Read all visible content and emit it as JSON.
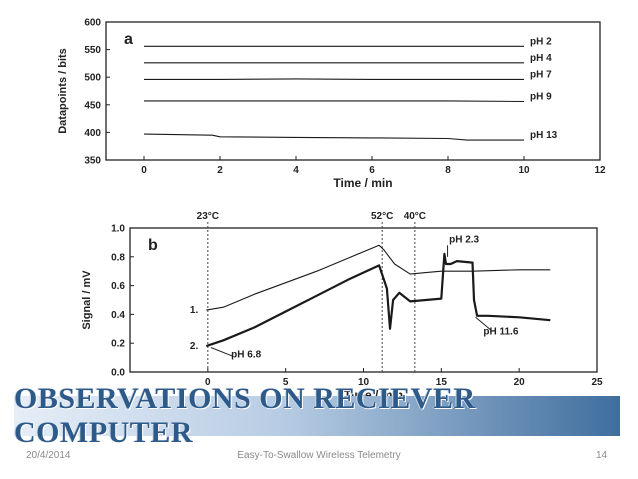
{
  "chart_data": [
    {
      "type": "line",
      "panel_label": "a",
      "xlabel": "Time / min",
      "ylabel": "Datapoints / bits",
      "xlim": [
        -1,
        12
      ],
      "ylim": [
        350,
        600
      ],
      "xticks": [
        0,
        2,
        4,
        6,
        8,
        10,
        12
      ],
      "yticks": [
        350,
        400,
        450,
        500,
        550,
        600
      ],
      "series": [
        {
          "name": "pH 2",
          "x": [
            0,
            2,
            4,
            6,
            8,
            10
          ],
          "y": [
            556,
            556,
            556,
            556,
            556,
            556
          ]
        },
        {
          "name": "pH 4",
          "x": [
            0,
            2,
            4,
            6,
            8,
            10
          ],
          "y": [
            526,
            526,
            526,
            526,
            526,
            526
          ]
        },
        {
          "name": "pH 7",
          "x": [
            0,
            2,
            4,
            6,
            8,
            10
          ],
          "y": [
            496,
            496,
            497,
            496,
            496,
            496
          ]
        },
        {
          "name": "pH 9",
          "x": [
            0,
            2,
            4,
            6,
            8,
            10
          ],
          "y": [
            457,
            457,
            457,
            457,
            457,
            456
          ]
        },
        {
          "name": "pH 13",
          "x": [
            0,
            1.8,
            2,
            4,
            6,
            8,
            8.5,
            10
          ],
          "y": [
            397,
            395,
            392,
            391,
            390,
            389,
            386,
            386
          ]
        }
      ]
    },
    {
      "type": "line",
      "panel_label": "b",
      "xlabel": "Time / min",
      "ylabel": "Signal / mV",
      "xlim": [
        -5,
        25
      ],
      "ylim": [
        0,
        1
      ],
      "xticks": [
        0,
        5,
        10,
        15,
        20,
        25
      ],
      "yticks": [
        0.0,
        0.2,
        0.4,
        0.6,
        0.8,
        1.0
      ],
      "ytick_labels": [
        "0.0",
        "0.2",
        "0.4",
        "0.6",
        "0.8",
        "1.0"
      ],
      "vlines": [
        {
          "x": 0,
          "label": "23°C"
        },
        {
          "x": 11.2,
          "label": "52°C"
        },
        {
          "x": 13.3,
          "label": "40°C"
        }
      ],
      "series": [
        {
          "name": "1.",
          "x": [
            -0.1,
            1,
            3,
            5,
            7,
            9,
            11,
            11.3,
            12,
            13,
            14,
            15,
            17,
            20,
            22
          ],
          "y": [
            0.43,
            0.45,
            0.54,
            0.62,
            0.7,
            0.79,
            0.88,
            0.85,
            0.75,
            0.68,
            0.69,
            0.7,
            0.7,
            0.71,
            0.71
          ]
        },
        {
          "name": "2.",
          "x": [
            -0.1,
            1,
            3,
            5,
            7,
            9,
            11,
            11.5,
            11.7,
            11.9,
            12.3,
            13,
            14,
            15,
            15.2,
            15.3,
            15.6,
            16,
            17,
            17.1,
            17.3,
            18,
            20,
            22
          ],
          "y": [
            0.18,
            0.22,
            0.31,
            0.42,
            0.53,
            0.64,
            0.74,
            0.58,
            0.3,
            0.5,
            0.55,
            0.49,
            0.5,
            0.51,
            0.82,
            0.75,
            0.75,
            0.77,
            0.76,
            0.5,
            0.39,
            0.39,
            0.38,
            0.36
          ]
        }
      ],
      "annotations": [
        {
          "text": "pH 6.8",
          "x": 1.5,
          "y": 0.1
        },
        {
          "text": "pH 2.3",
          "x": 15.5,
          "y": 0.9
        },
        {
          "text": "pH 11.6",
          "x": 17.7,
          "y": 0.26
        }
      ]
    }
  ],
  "banner": {
    "title": "OBSERVATIONS ON RECIEVER COMPUTER"
  },
  "footer": {
    "date": "20/4/2014",
    "center": "Easy-To-Swallow Wireless Telemetry",
    "page": "14"
  }
}
